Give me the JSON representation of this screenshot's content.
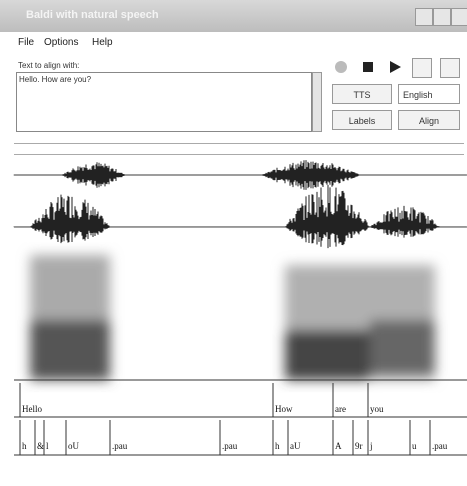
{
  "window": {
    "title": "Baldi with natural speech"
  },
  "menu": {
    "items": [
      "File",
      "Options",
      "Help"
    ]
  },
  "text_panel": {
    "label": "Text to align with:",
    "text": "Hello. How are you?"
  },
  "buttons": {
    "tts": "TTS",
    "language": "English",
    "labels": "Labels",
    "align": "Align"
  },
  "tiers": {
    "words": [
      "Hello",
      "How",
      "are",
      "you"
    ],
    "phones": [
      "h",
      "&",
      "l",
      "oU",
      ".pau",
      ".pau",
      "h",
      "aU",
      "A",
      "9r",
      "j",
      "u",
      ".pau"
    ]
  }
}
